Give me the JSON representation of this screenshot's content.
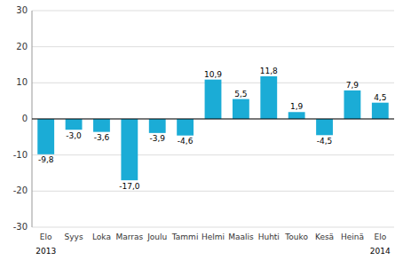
{
  "chart_data": {
    "type": "bar",
    "categories": [
      "Elo",
      "Syys",
      "Loka",
      "Marras",
      "Joulu",
      "Tammi",
      "Helmi",
      "Maalis",
      "Huhti",
      "Touko",
      "Kesä",
      "Heinä",
      "Elo"
    ],
    "values": [
      -9.8,
      -3.0,
      -3.6,
      -17.0,
      -3.9,
      -4.6,
      10.9,
      5.5,
      11.8,
      1.9,
      -4.5,
      7.9,
      4.5
    ],
    "value_labels": [
      "-9,8",
      "-3,0",
      "-3,6",
      "-17,0",
      "-3,9",
      "-4,6",
      "10,9",
      "5,5",
      "11,8",
      "1,9",
      "-4,5",
      "7,9",
      "4,5"
    ],
    "color": "#1BACD6",
    "ylim": [
      -30,
      30
    ],
    "yticks": [
      -30,
      -20,
      -10,
      0,
      10,
      20,
      30
    ],
    "grid": true,
    "data_labels": true,
    "annotations": [
      {
        "text": "2013",
        "index": 0
      },
      {
        "text": "2014",
        "index": 12
      }
    ]
  }
}
